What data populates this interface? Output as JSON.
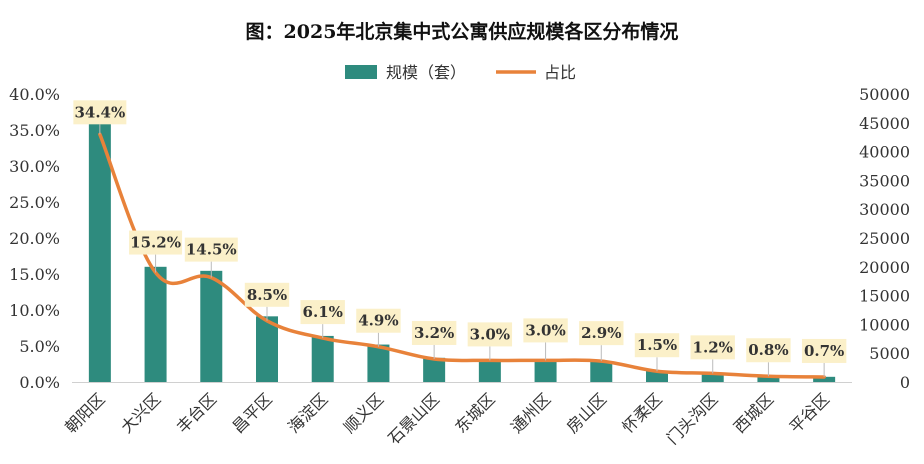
{
  "chart_data": {
    "type": "bar",
    "title": "图：2025年北京集中式公寓供应规模各区分布情况",
    "categories": [
      "朝阳区",
      "大兴区",
      "丰台区",
      "昌平区",
      "海淀区",
      "顺义区",
      "石景山区",
      "东城区",
      "通州区",
      "房山区",
      "怀柔区",
      "门头沟区",
      "西城区",
      "平谷区"
    ],
    "series": [
      {
        "name": "规模（套）",
        "type": "bar",
        "axis": "right",
        "color": "#2e8b7e",
        "values": [
          45200,
          20000,
          19300,
          11400,
          8000,
          6500,
          4200,
          3800,
          3700,
          3600,
          1900,
          1500,
          1000,
          900
        ]
      },
      {
        "name": "占比",
        "type": "line",
        "axis": "left",
        "smooth": true,
        "color": "#e8823a",
        "values": [
          34.4,
          15.2,
          14.5,
          8.5,
          6.1,
          4.9,
          3.2,
          3.0,
          3.0,
          2.9,
          1.5,
          1.2,
          0.8,
          0.7
        ],
        "labels": [
          "34.4%",
          "15.2%",
          "14.5%",
          "8.5%",
          "6.1%",
          "4.9%",
          "3.2%",
          "3.0%",
          "3.0%",
          "2.9%",
          "1.5%",
          "1.2%",
          "0.8%",
          "0.7%"
        ]
      }
    ],
    "y_left": {
      "range": [
        0,
        40
      ],
      "ticks": [
        "0.0%",
        "5.0%",
        "10.0%",
        "15.0%",
        "20.0%",
        "25.0%",
        "30.0%",
        "35.0%",
        "40.0%"
      ]
    },
    "y_right": {
      "range": [
        0,
        50000
      ],
      "ticks": [
        "0",
        "5000",
        "10000",
        "15000",
        "20000",
        "25000",
        "30000",
        "35000",
        "40000",
        "45000",
        "50000"
      ]
    },
    "grid": false,
    "legend": "top-center",
    "label_bg": "#fbf0c9"
  }
}
